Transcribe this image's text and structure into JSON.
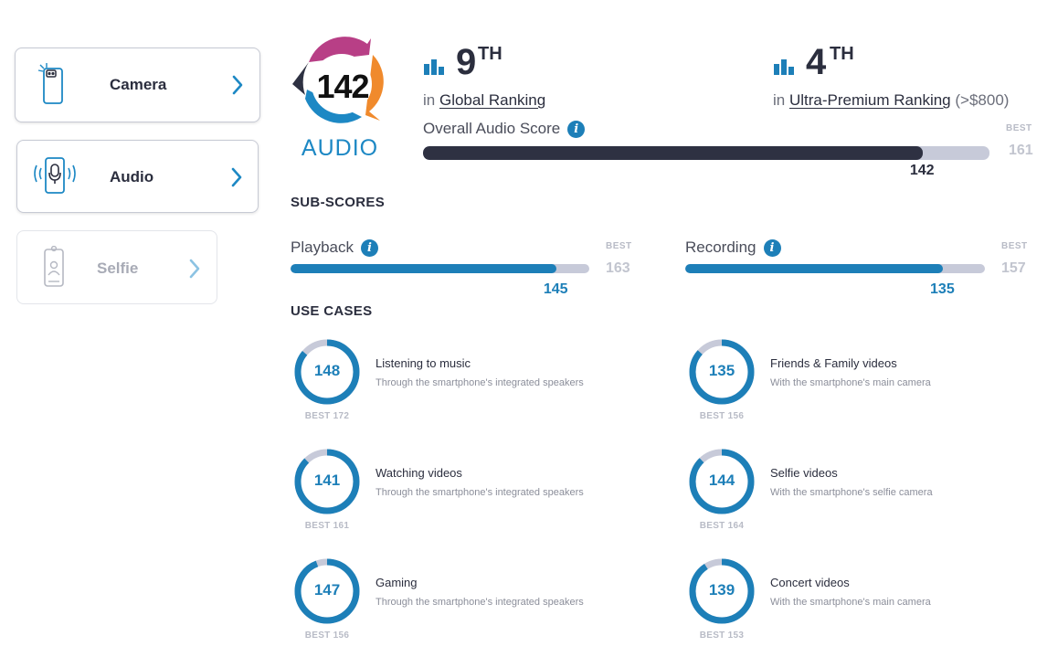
{
  "sidebar": {
    "tabs": [
      {
        "label": "Camera",
        "icon": "phone-camera-icon",
        "state": "enabled"
      },
      {
        "label": "Audio",
        "icon": "phone-microphone-icon",
        "state": "active"
      },
      {
        "label": "Selfie",
        "icon": "phone-selfie-icon",
        "state": "disabled"
      }
    ]
  },
  "badge": {
    "score": "142",
    "label": "AUDIO"
  },
  "rankings": {
    "global": {
      "rank": "9",
      "suffix": "TH",
      "prefix": "in",
      "link": "Global Ranking",
      "extra": ""
    },
    "segment": {
      "rank": "4",
      "suffix": "TH",
      "prefix": "in",
      "link": "Ultra-Premium Ranking",
      "extra": "(>$800)"
    }
  },
  "overall": {
    "label": "Overall Audio Score",
    "score": 142,
    "score_text": "142",
    "best": 161,
    "best_text": "161",
    "best_label": "BEST"
  },
  "subscores": {
    "title": "SUB-SCORES",
    "playback": {
      "label": "Playback",
      "score": 145,
      "score_text": "145",
      "best": 163,
      "best_text": "163",
      "best_label": "BEST"
    },
    "recording": {
      "label": "Recording",
      "score": 135,
      "score_text": "135",
      "best": 157,
      "best_text": "157",
      "best_label": "BEST"
    }
  },
  "use_cases": {
    "title": "USE CASES",
    "items": [
      {
        "score": 148,
        "score_text": "148",
        "best": 172,
        "best_text": "BEST 172",
        "title": "Listening to music",
        "sub": "Through the smartphone's integrated speakers"
      },
      {
        "score": 135,
        "score_text": "135",
        "best": 156,
        "best_text": "BEST 156",
        "title": "Friends & Family videos",
        "sub": "With the smartphone's main camera"
      },
      {
        "score": 141,
        "score_text": "141",
        "best": 161,
        "best_text": "BEST 161",
        "title": "Watching videos",
        "sub": "Through the smartphone's integrated speakers"
      },
      {
        "score": 144,
        "score_text": "144",
        "best": 164,
        "best_text": "BEST 164",
        "title": "Selfie videos",
        "sub": "With the smartphone's selfie camera"
      },
      {
        "score": 147,
        "score_text": "147",
        "best": 156,
        "best_text": "BEST 156",
        "title": "Gaming",
        "sub": "Through the smartphone's integrated speakers"
      },
      {
        "score": 139,
        "score_text": "139",
        "best": 153,
        "best_text": "BEST 153",
        "title": "Concert videos",
        "sub": "With the smartphone's main camera"
      }
    ]
  },
  "colors": {
    "accent": "#1d7fb8",
    "dark_bar": "#2e3142",
    "track": "#c7cad9",
    "text": "#2b2e3e"
  }
}
